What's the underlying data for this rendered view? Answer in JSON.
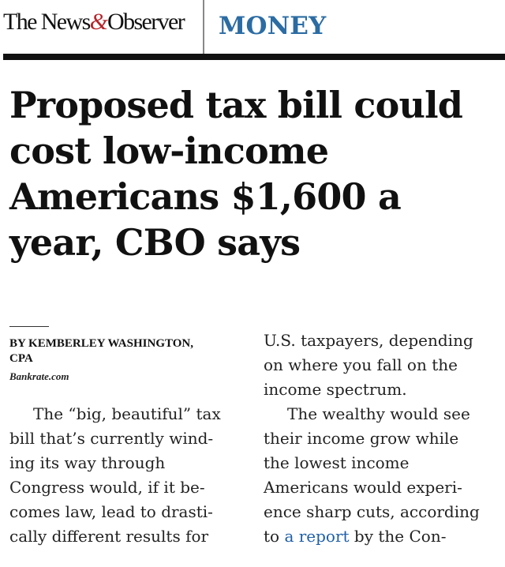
{
  "masthead": {
    "brand_before": "The News",
    "brand_amp": "&",
    "brand_after": "Observer",
    "section": "MONEY"
  },
  "article": {
    "headline": "Proposed tax bill could cost low-income Americans $1,600 a year, CBO says",
    "byline": {
      "author_line1": "BY KEMBERLEY WASHINGTON,",
      "author_line2": "CPA",
      "source": "Bankrate.com"
    },
    "left_column_lines": [
      "The “big, beautiful” tax",
      "bill that’s currently wind-",
      "ing its way through",
      "Congress would, if it be-",
      "comes law, lead to drasti-",
      "cally different results for"
    ],
    "right_column_lines": [
      "U.S. taxpayers, depending",
      "on where you fall on the",
      "income spectrum.",
      "The wealthy would see",
      "their income grow while",
      "the lowest income",
      "Americans would experi-",
      "ence sharp cuts, according"
    ],
    "last_line_prefix": "to ",
    "link_text": "a report",
    "last_line_suffix": " by the Con-"
  },
  "colors": {
    "section_blue": "#2b6ca3",
    "brand_amp_red": "#b5252c",
    "link_blue": "#1f5fa8"
  }
}
